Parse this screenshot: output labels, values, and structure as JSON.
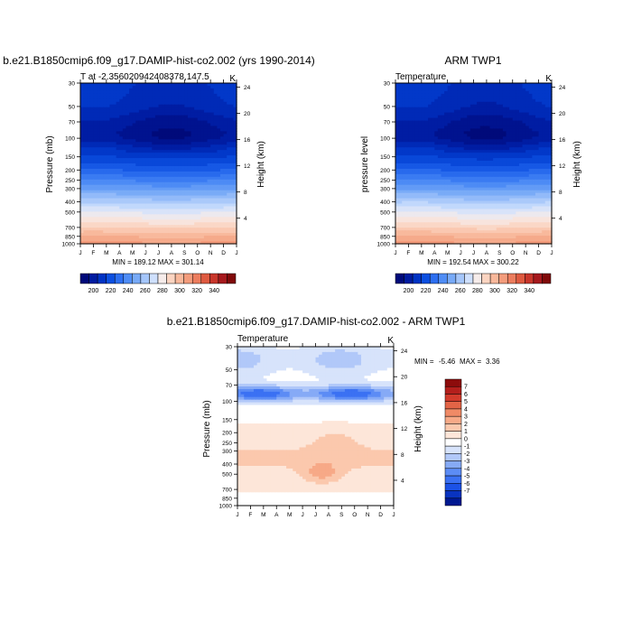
{
  "colors": {
    "temp_scale": [
      "#000a7a",
      "#001ba0",
      "#0033c4",
      "#0c4fe0",
      "#2d6ff0",
      "#4f8df5",
      "#78aaf7",
      "#a5c6fa",
      "#cfe0fd",
      "#f6ecea",
      "#fbd4c1",
      "#f8b89b",
      "#f39c7c",
      "#ec7d5e",
      "#de5a40",
      "#c8362b",
      "#a6191d",
      "#800a0a"
    ],
    "diff_scale": [
      "#001890",
      "#0933c0",
      "#1c52e6",
      "#3b71f3",
      "#5c8cf5",
      "#86aaf6",
      "#b1c8f9",
      "#d7e3fb",
      "#ffffff",
      "#fde6d9",
      "#fbc8ad",
      "#f7a987",
      "#f08a66",
      "#e36446",
      "#d23b2c",
      "#b41f1c",
      "#8d0c0c"
    ]
  },
  "chart_data": [
    {
      "type": "heatmap",
      "id": "model",
      "title": "b.e21.B1850cmip6.f09_g17.DAMIP-hist-co2.002 (yrs 1990-2014)",
      "left_string": "T at -2.356020942408378,147.5",
      "right_string": "K",
      "ylabel": "Pressure (mb)",
      "ylabel_right": "Height (km)",
      "x_ticks": [
        "J",
        "F",
        "M",
        "A",
        "M",
        "J",
        "J",
        "A",
        "S",
        "O",
        "N",
        "D",
        "J"
      ],
      "y_ticks": [
        "30",
        "50",
        "70",
        "100",
        "150",
        "200",
        "250",
        "300",
        "400",
        "500",
        "700",
        "850",
        "1000"
      ],
      "height_ticks": [
        "24",
        "20",
        "16",
        "12",
        "8",
        "4"
      ],
      "ylim": [
        1000,
        30
      ],
      "stats": "MIN = 189.12 MAX = 301.14",
      "min": 189.12,
      "max": 301.14,
      "colorbar_labels": [
        "200",
        "220",
        "240",
        "260",
        "280",
        "300",
        "320",
        "340"
      ],
      "levels": [
        195,
        200,
        205,
        210,
        215,
        220,
        225,
        230,
        235,
        240,
        245,
        250,
        255,
        260,
        265,
        270,
        275,
        280,
        285,
        290,
        295,
        300,
        305,
        310,
        315,
        320,
        325,
        330,
        335,
        340,
        345
      ]
    },
    {
      "type": "heatmap",
      "id": "obs",
      "title": "ARM TWP1",
      "left_string": "Temperature",
      "right_string": "K",
      "ylabel": "pressure level",
      "ylabel_right": "Height (km)",
      "x_ticks": [
        "J",
        "F",
        "M",
        "A",
        "M",
        "J",
        "J",
        "A",
        "S",
        "O",
        "N",
        "D",
        "J"
      ],
      "y_ticks": [
        "30",
        "50",
        "70",
        "100",
        "150",
        "200",
        "250",
        "300",
        "400",
        "500",
        "700",
        "850",
        "1000"
      ],
      "height_ticks": [
        "24",
        "20",
        "16",
        "12",
        "8",
        "4"
      ],
      "ylim": [
        1000,
        30
      ],
      "stats": "MIN = 192.54 MAX = 300.22",
      "min": 192.54,
      "max": 300.22,
      "colorbar_labels": [
        "200",
        "220",
        "240",
        "260",
        "280",
        "300",
        "320",
        "340"
      ]
    },
    {
      "type": "heatmap",
      "id": "diff",
      "title": "b.e21.B1850cmip6.f09_g17.DAMIP-hist-co2.002 - ARM TWP1",
      "left_string": "Temperature",
      "right_string": "K",
      "ylabel": "Pressure (mb)",
      "ylabel_right": "Height (km)",
      "x_ticks": [
        "J",
        "F",
        "M",
        "A",
        "M",
        "J",
        "J",
        "A",
        "S",
        "O",
        "N",
        "D",
        "J"
      ],
      "y_ticks": [
        "30",
        "50",
        "70",
        "100",
        "150",
        "200",
        "250",
        "300",
        "400",
        "500",
        "700",
        "850",
        "1000"
      ],
      "height_ticks": [
        "24",
        "20",
        "16",
        "12",
        "8",
        "4"
      ],
      "ylim": [
        1000,
        30
      ],
      "stats_min_label": "MIN =",
      "stats_min_value": "-5.46",
      "stats_max_label": "MAX =",
      "stats_max_value": "3.36",
      "min": -5.46,
      "max": 3.36,
      "colorbar_labels": [
        "7",
        "6",
        "5",
        "4",
        "3",
        "2",
        "1",
        "0",
        "-1",
        "-2",
        "-3",
        "-4",
        "-5",
        "-6",
        "-7"
      ]
    }
  ]
}
